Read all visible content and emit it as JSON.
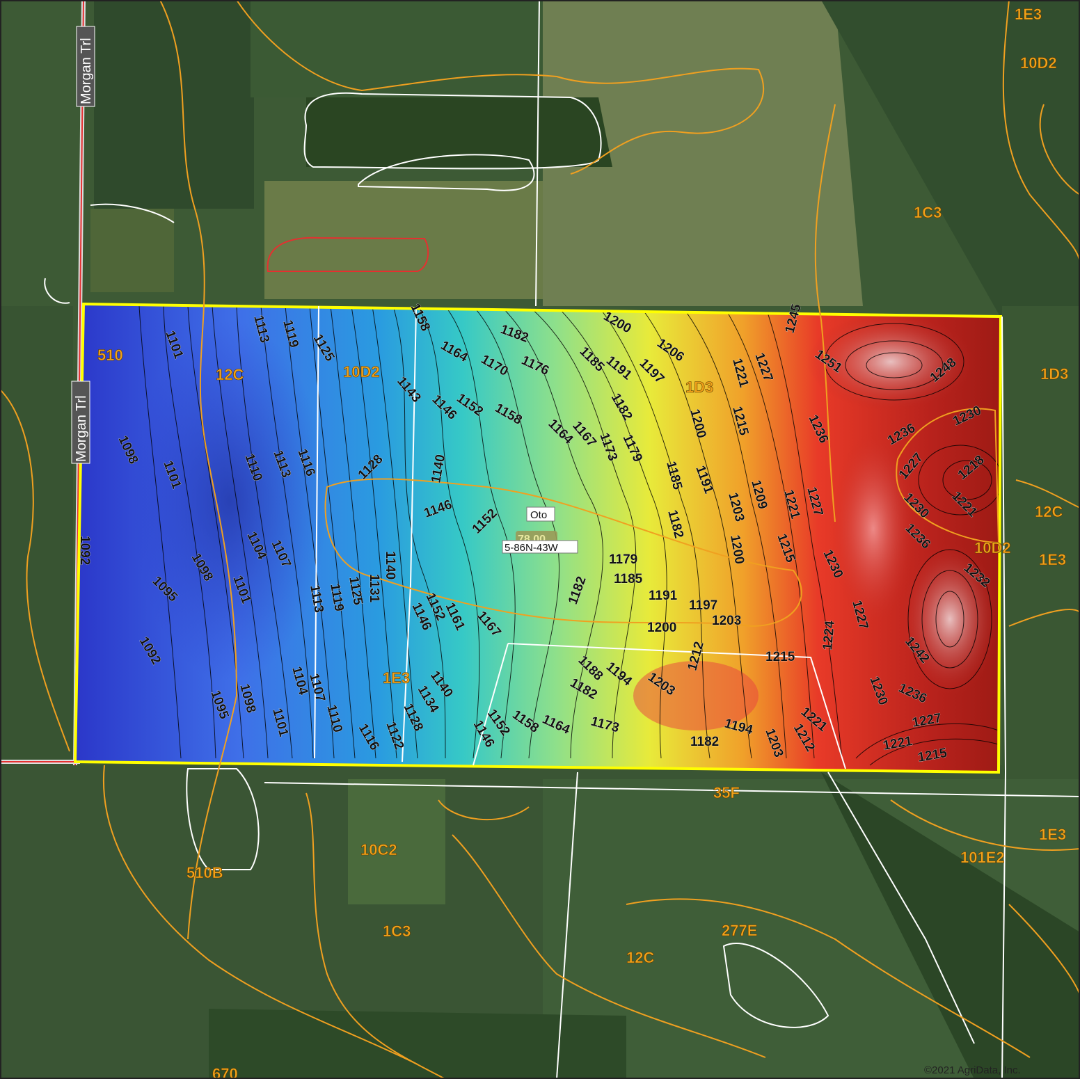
{
  "map": {
    "roads": [
      "Morgan Trl",
      "Morgan Trl"
    ],
    "soil_units": [
      "1E3",
      "10D2",
      "1C3",
      "1D3",
      "12C",
      "10D2",
      "1E3",
      "510",
      "12C",
      "10D2",
      "1D3",
      "1E3",
      "35F",
      "1E3",
      "101E2",
      "510B",
      "10C2",
      "1C3",
      "277E",
      "12C",
      "670"
    ],
    "field": {
      "name": "Oto",
      "acres": "78.00",
      "plss": "5-86N-43W"
    },
    "contour_labels": [
      "1101",
      "1113",
      "1119",
      "1125",
      "1158",
      "1182",
      "1200",
      "1206",
      "1245",
      "1164",
      "1170",
      "1176",
      "1185",
      "1191",
      "1197",
      "1221",
      "1227",
      "1251",
      "1248",
      "1143",
      "1146",
      "1152",
      "1158",
      "1182",
      "1200",
      "1215",
      "1236",
      "1230",
      "1098",
      "1101",
      "1110",
      "1113",
      "1116",
      "1128",
      "1140",
      "1164",
      "1167",
      "1173",
      "1179",
      "1185",
      "1191",
      "1236",
      "1227",
      "1218",
      "1146",
      "1152",
      "1209",
      "1203",
      "1221",
      "1227",
      "1230",
      "1221",
      "1182",
      "1095",
      "1104",
      "1107",
      "1140",
      "1131",
      "1179",
      "1185",
      "1200",
      "1215",
      "1236",
      "1098",
      "1101",
      "1125",
      "1119",
      "1113",
      "1182",
      "1191",
      "1197",
      "1230",
      "1232",
      "1092",
      "1152",
      "1146",
      "1161",
      "1167",
      "1200",
      "1203",
      "1224",
      "1227",
      "1242",
      "1212",
      "1215",
      "1188",
      "1194",
      "1182",
      "1203",
      "1092",
      "1095",
      "1098",
      "1101",
      "1104",
      "1107",
      "1110",
      "1116",
      "1122",
      "1128",
      "1134",
      "1140",
      "1146",
      "1152",
      "1158",
      "1164",
      "1173",
      "1182",
      "1194",
      "1203",
      "1212",
      "1221",
      "1230",
      "1236",
      "1227",
      "1221",
      "1215"
    ],
    "copyright": "©2021 AgriData, Inc."
  }
}
